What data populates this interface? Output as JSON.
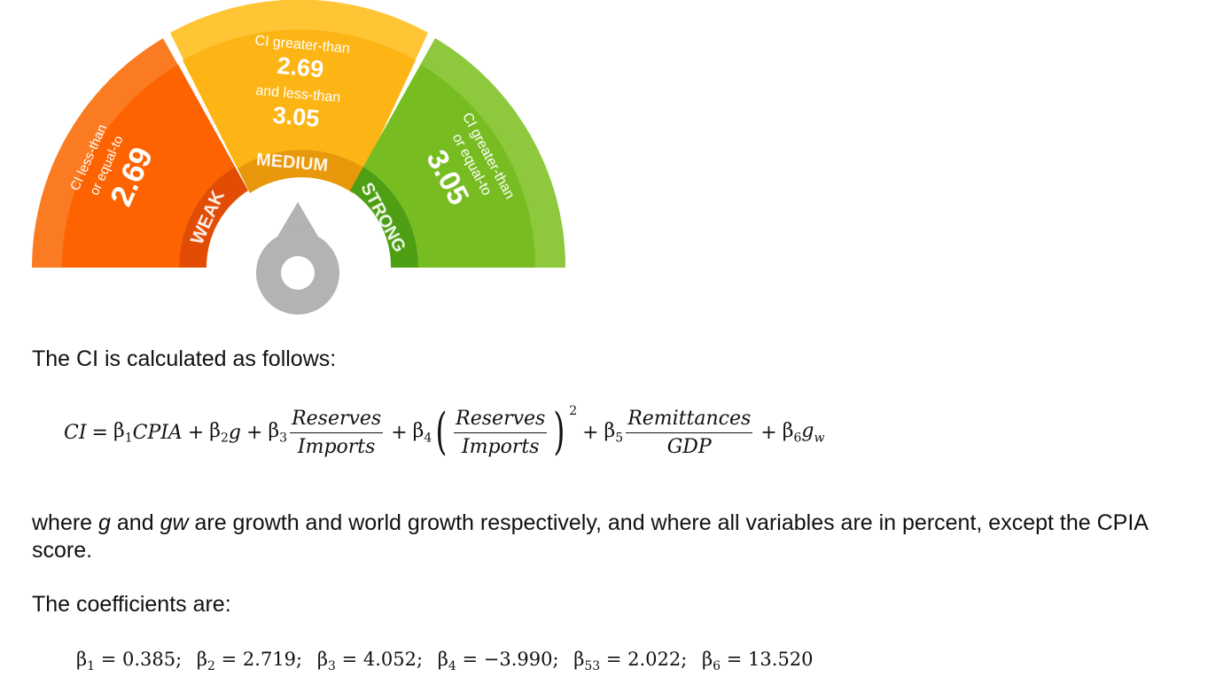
{
  "gauge": {
    "weak": {
      "zone_label": "WEAK",
      "line1": "CI less-than",
      "line2": "or equal-to",
      "value": "2.69",
      "color_outer": "#fb7b22",
      "color_inner": "#fd6300",
      "color_band": "#e24c04"
    },
    "medium": {
      "zone_label": "MEDIUM",
      "line1": "CI greater-than",
      "value1": "2.69",
      "line2": "and less-than",
      "value2": "3.05",
      "color_outer": "#ffc535",
      "color_inner": "#fdb515",
      "color_band": "#e8980a"
    },
    "strong": {
      "zone_label": "STRONG",
      "line1": "CI greater-than",
      "line2": "or equal-to",
      "value": "3.05",
      "color_outer": "#8ec83d",
      "color_inner": "#77bd22",
      "color_band": "#4e9f14"
    },
    "needle_color": "#b3b3b3"
  },
  "intro": "The CI is calculated as follows:",
  "formula": {
    "lhs": "CI",
    "eq": "=",
    "plus": "+",
    "b1": "β",
    "b1_sub": "1",
    "t1": "CPIA",
    "b2": "β",
    "b2_sub": "2",
    "t2": "g",
    "b3": "β",
    "b3_sub": "3",
    "f3_num": "Reserves",
    "f3_den": "Imports",
    "b4": "β",
    "b4_sub": "4",
    "f4_num": "Reserves",
    "f4_den": "Imports",
    "f4_open": "(",
    "f4_close": ")",
    "f4_exp": "2",
    "b5": "β",
    "b5_sub": "5",
    "f5_num": "Remittances",
    "f5_den": "GDP",
    "b6": "β",
    "b6_sub": "6",
    "t6": "g",
    "t6_sub": "w"
  },
  "where": {
    "w1": "where ",
    "g": "g",
    "w2": " and ",
    "gw": "gw",
    "w3": " are growth and world growth respectively, and where all variables are in percent, except the CPIA score."
  },
  "coef_intro": "The coefficients are:",
  "coefficients": [
    {
      "beta": "β",
      "sub": "1",
      "text": "= 0.385;"
    },
    {
      "beta": "β",
      "sub": "2",
      "text": "= 2.719;"
    },
    {
      "beta": "β",
      "sub": "3",
      "text": "= 4.052;"
    },
    {
      "beta": "β",
      "sub": "4",
      "text": "= −3.990;"
    },
    {
      "beta": "β",
      "sub": "53",
      "text": "= 2.022;"
    },
    {
      "beta": "β",
      "sub": "6",
      "text": "= 13.520"
    }
  ]
}
